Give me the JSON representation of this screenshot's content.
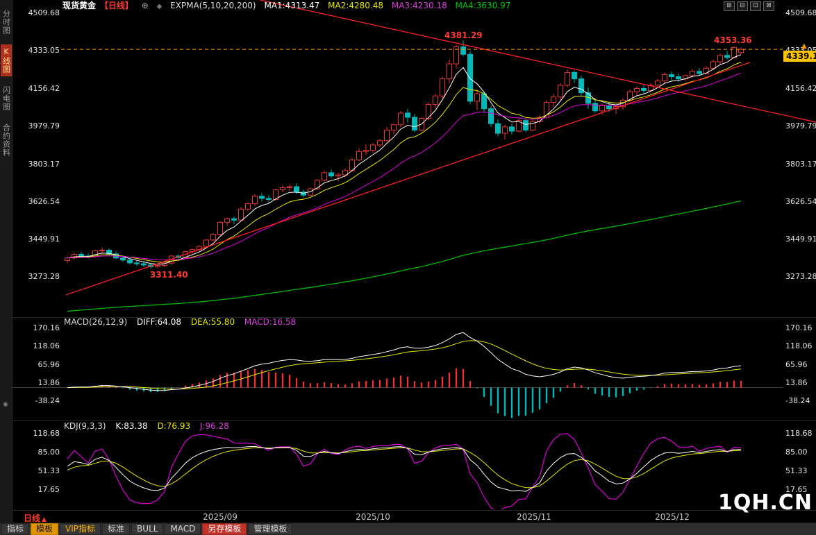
{
  "header": {
    "symbol": "现货黄金",
    "period_tag": "【日线】",
    "plus_icon": "⊕",
    "diamond_icon": "◆",
    "expma_label": "EXPMA(5,10,20,200)",
    "ma1": "MA1:4313.47",
    "ma2": "MA2:4280.48",
    "ma3": "MA3:4230.18",
    "ma4": "MA4:3630.97"
  },
  "window_icons": [
    "⊞",
    "⊟",
    "⊡",
    "⊠"
  ],
  "sidebar": {
    "items": [
      "分时图",
      "K线图",
      "闪电图",
      "合约资料"
    ],
    "active_index": 1,
    "bottom_icon": "◉"
  },
  "price_axis_labels": [
    "4509.68",
    "4333.05",
    "4156.42",
    "3979.79",
    "3803.17",
    "3626.54",
    "3449.91",
    "3273.28"
  ],
  "price_badge": "4339.10",
  "price_marker_icon": "▲",
  "annotations": {
    "peak": "4381.29",
    "low": "3311.40",
    "recent_high": "4353.36"
  },
  "macd_header": {
    "title": "MACD(26,12,9)",
    "diff": "DIFF:64.08",
    "dea": "DEA:55.80",
    "macd": "MACD:16.58"
  },
  "macd_axis_labels": [
    "170.16",
    "118.06",
    "65.96",
    "13.86",
    "-38.24"
  ],
  "kdj_header": {
    "title": "KDJ(9,3,3)",
    "k": "K:83.38",
    "d": "D:76.93",
    "j": "J:96.28"
  },
  "kdj_axis_labels": [
    "118.68",
    "85.00",
    "51.33",
    "17.65"
  ],
  "period_label": "日线",
  "period_arrow": "▲",
  "date_labels": [
    "2025/09",
    "2025/10",
    "2025/11",
    "2025/12"
  ],
  "watermark": "1QH.CN",
  "toolbar": [
    "指标",
    "模板",
    "VIP指标",
    "标准",
    "BULL",
    "MACD",
    "另存模板",
    "管理模板"
  ],
  "chart_data": {
    "type": "candlestick",
    "symbol": "现货黄金",
    "period": "日线",
    "price_axis": [
      4509.68,
      4333.05,
      4156.42,
      3979.79,
      3803.17,
      3626.54,
      3449.91,
      3273.28
    ],
    "last_price": 4339.1,
    "marked_high": 4381.29,
    "marked_low": 3311.4,
    "recent_high": 4353.36,
    "x_dates": [
      "2025/09",
      "2025/10",
      "2025/11",
      "2025/12"
    ],
    "expma_params": [
      5,
      10,
      20,
      200
    ],
    "expma_values": [
      4313.47,
      4280.48,
      4230.18,
      3630.97
    ],
    "ma200_seed": 3110,
    "macd": {
      "params": [
        26,
        12,
        9
      ],
      "diff": 64.08,
      "dea": 55.8,
      "macd": 16.58,
      "axis": [
        170.16,
        118.06,
        65.96,
        13.86,
        -38.24
      ]
    },
    "kdj": {
      "params": [
        9,
        3,
        3
      ],
      "k": 83.38,
      "d": 76.93,
      "j": 96.28,
      "axis": [
        118.68,
        85.0,
        51.33,
        17.65
      ]
    },
    "colors": {
      "up": "#ee3333",
      "down": "#00b9b9",
      "ma": [
        "#ffffff",
        "#e8e800",
        "#dd00dd",
        "#00bb00"
      ],
      "diff": "#ffffff",
      "dea": "#e8e800",
      "hist_pos": "#ee3333",
      "hist_neg": "#00b9b9",
      "kdj": [
        "#ffffff",
        "#e8e800",
        "#dd00dd"
      ],
      "trendline": "#ff2020",
      "last_price_line": "#ff9900",
      "badge_bg": "#ffc400"
    },
    "trendlines": [
      {
        "i1": 27.8,
        "p1": 4570,
        "i2": 107.8,
        "p2": 3998
      },
      {
        "i1": -0.2,
        "p1": 3189,
        "i2": 98.3,
        "p2": 4278
      }
    ],
    "candles": [
      [
        3350,
        3368,
        3338,
        3362
      ],
      [
        3362,
        3386,
        3356,
        3379
      ],
      [
        3379,
        3391,
        3364,
        3371
      ],
      [
        3371,
        3383,
        3360,
        3368
      ],
      [
        3368,
        3401,
        3364,
        3396
      ],
      [
        3396,
        3411,
        3381,
        3399
      ],
      [
        3399,
        3406,
        3374,
        3381
      ],
      [
        3381,
        3391,
        3356,
        3362
      ],
      [
        3362,
        3373,
        3344,
        3352
      ],
      [
        3352,
        3361,
        3331,
        3339
      ],
      [
        3339,
        3349,
        3324,
        3335
      ],
      [
        3335,
        3346,
        3319,
        3329
      ],
      [
        3329,
        3338,
        3311.4,
        3321
      ],
      [
        3321,
        3332,
        3313,
        3327
      ],
      [
        3327,
        3341,
        3318,
        3338
      ],
      [
        3338,
        3376,
        3331,
        3371
      ],
      [
        3371,
        3379,
        3354,
        3364
      ],
      [
        3364,
        3396,
        3359,
        3391
      ],
      [
        3391,
        3406,
        3383,
        3401
      ],
      [
        3401,
        3421,
        3393,
        3416
      ],
      [
        3416,
        3451,
        3409,
        3446
      ],
      [
        3446,
        3479,
        3441,
        3473
      ],
      [
        3473,
        3536,
        3466,
        3529
      ],
      [
        3529,
        3551,
        3511,
        3546
      ],
      [
        3546,
        3556,
        3521,
        3539
      ],
      [
        3539,
        3601,
        3533,
        3591
      ],
      [
        3591,
        3621,
        3581,
        3616
      ],
      [
        3616,
        3661,
        3606,
        3651
      ],
      [
        3651,
        3666,
        3626,
        3641
      ],
      [
        3641,
        3656,
        3621,
        3636
      ],
      [
        3636,
        3686,
        3631,
        3681
      ],
      [
        3681,
        3701,
        3669,
        3691
      ],
      [
        3691,
        3706,
        3676,
        3696
      ],
      [
        3696,
        3711,
        3661,
        3671
      ],
      [
        3671,
        3681,
        3646,
        3656
      ],
      [
        3656,
        3691,
        3651,
        3686
      ],
      [
        3686,
        3731,
        3681,
        3726
      ],
      [
        3726,
        3771,
        3721,
        3761
      ],
      [
        3761,
        3776,
        3736,
        3746
      ],
      [
        3746,
        3761,
        3721,
        3751
      ],
      [
        3751,
        3781,
        3741,
        3771
      ],
      [
        3771,
        3831,
        3766,
        3821
      ],
      [
        3821,
        3876,
        3816,
        3861
      ],
      [
        3861,
        3896,
        3846,
        3866
      ],
      [
        3866,
        3901,
        3856,
        3891
      ],
      [
        3891,
        3921,
        3881,
        3911
      ],
      [
        3911,
        3976,
        3906,
        3961
      ],
      [
        3961,
        3991,
        3941,
        3986
      ],
      [
        3986,
        4051,
        3976,
        4041
      ],
      [
        4041,
        4061,
        3996,
        4021
      ],
      [
        4021,
        4036,
        3951,
        3961
      ],
      [
        3961,
        4021,
        3956,
        4016
      ],
      [
        4016,
        4091,
        4006,
        4081
      ],
      [
        4081,
        4131,
        4061,
        4121
      ],
      [
        4121,
        4211,
        4111,
        4201
      ],
      [
        4201,
        4291,
        4181,
        4271
      ],
      [
        4271,
        4361,
        4251,
        4351
      ],
      [
        4351,
        4381.29,
        4306,
        4316
      ],
      [
        4316,
        4331,
        4081,
        4096
      ],
      [
        4096,
        4151,
        4056,
        4131
      ],
      [
        4131,
        4141,
        4041,
        4061
      ],
      [
        4061,
        4076,
        3976,
        3991
      ],
      [
        3991,
        4011,
        3931,
        3946
      ],
      [
        3946,
        3986,
        3916,
        3976
      ],
      [
        3976,
        3991,
        3941,
        3956
      ],
      [
        3956,
        4016,
        3951,
        4006
      ],
      [
        4006,
        4016,
        3951,
        3961
      ],
      [
        3961,
        4011,
        3956,
        4001
      ],
      [
        4001,
        4031,
        3991,
        4021
      ],
      [
        4021,
        4101,
        4016,
        4091
      ],
      [
        4091,
        4131,
        4071,
        4116
      ],
      [
        4116,
        4181,
        4101,
        4171
      ],
      [
        4171,
        4246,
        4161,
        4231
      ],
      [
        4231,
        4241,
        4181,
        4201
      ],
      [
        4201,
        4216,
        4121,
        4136
      ],
      [
        4136,
        4161,
        4061,
        4086
      ],
      [
        4086,
        4111,
        4041,
        4051
      ],
      [
        4051,
        4086,
        4031,
        4076
      ],
      [
        4076,
        4091,
        4046,
        4061
      ],
      [
        4061,
        4081,
        4036,
        4071
      ],
      [
        4071,
        4111,
        4056,
        4101
      ],
      [
        4101,
        4151,
        4091,
        4141
      ],
      [
        4141,
        4166,
        4121,
        4156
      ],
      [
        4156,
        4171,
        4131,
        4146
      ],
      [
        4146,
        4181,
        4136,
        4171
      ],
      [
        4171,
        4201,
        4161,
        4191
      ],
      [
        4191,
        4231,
        4181,
        4221
      ],
      [
        4221,
        4236,
        4196,
        4211
      ],
      [
        4211,
        4226,
        4186,
        4201
      ],
      [
        4201,
        4221,
        4191,
        4216
      ],
      [
        4216,
        4246,
        4206,
        4236
      ],
      [
        4236,
        4251,
        4216,
        4226
      ],
      [
        4226,
        4261,
        4221,
        4251
      ],
      [
        4251,
        4291,
        4241,
        4281
      ],
      [
        4281,
        4321,
        4271,
        4311
      ],
      [
        4311,
        4331,
        4291,
        4301
      ],
      [
        4301,
        4353.36,
        4296,
        4348
      ],
      [
        4324,
        4349,
        4316,
        4339.1
      ]
    ]
  }
}
